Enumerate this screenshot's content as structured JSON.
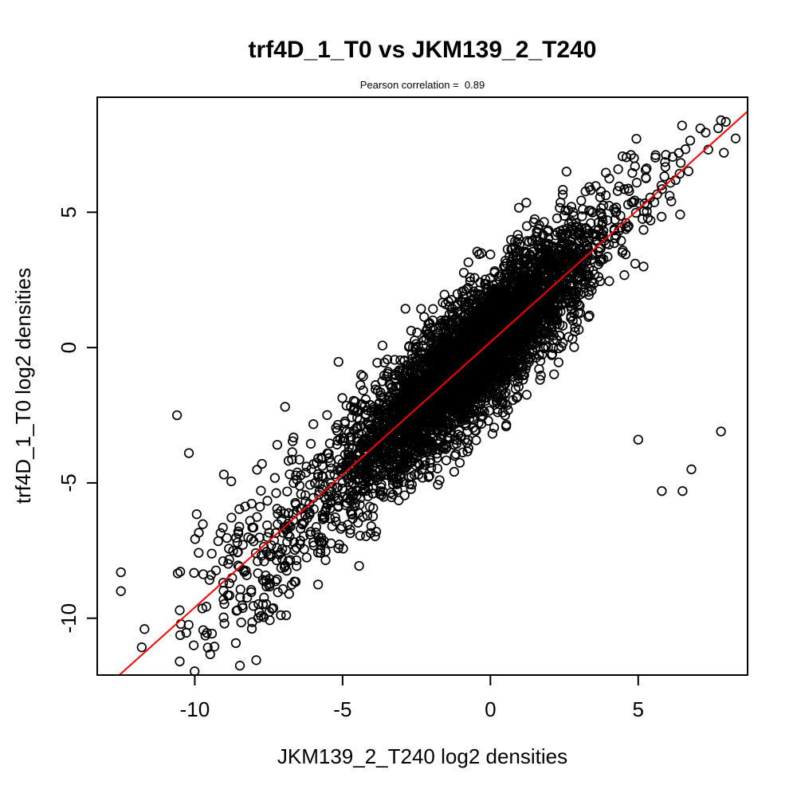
{
  "chart_data": {
    "type": "scatter",
    "title": "trf4D_1_T0 vs JKM139_2_T240",
    "subtitle": "Pearson correlation =  0.89",
    "pearson_correlation": 0.89,
    "xlabel": "JKM139_2_T240 log2 densities",
    "ylabel": "trf4D_1_T0 log2 densities",
    "xlim": [
      -13.3,
      8.7
    ],
    "ylim": [
      -12.1,
      9.25
    ],
    "x_ticks": [
      -10,
      -5,
      0,
      5
    ],
    "y_ticks": [
      -10,
      -5,
      0,
      5
    ],
    "grid": false,
    "legend": "none",
    "colors": {
      "background": "#ffffff",
      "axis": "#000000",
      "points": "#000000",
      "fit_line": "#ff0000"
    },
    "marker": {
      "shape": "open-circle",
      "radius_px": 5.3,
      "stroke": "#000000",
      "stroke_width": 1.7
    },
    "fit_line": {
      "slope": 0.98,
      "intercept": 0.2,
      "color": "#ff0000",
      "width": 2
    },
    "points": {
      "description": "Dense correlated cloud of ~5000 open circles along the diagonal; values reconstructed statistically from the plot (seeded clusters), plus individually visible outliers.",
      "seed": 7,
      "approx_n_total": 4970,
      "clusters": [
        {
          "name": "core",
          "n": 4600,
          "x_mean": -0.6,
          "x_sd": 2.05,
          "slope": 0.98,
          "intercept": 0.2,
          "residual_sd": 1.15
        },
        {
          "name": "low-signal-tail",
          "n": 330,
          "x_mean": -7.0,
          "x_sd": 2.2,
          "slope": 0.98,
          "intercept": 0.2,
          "residual_sd": 1.7
        },
        {
          "name": "upper-right-trail",
          "n": 28,
          "x_mean": 6.0,
          "x_sd": 1.0,
          "slope": 0.98,
          "intercept": 0.2,
          "residual_sd": 0.9
        }
      ],
      "outliers": [
        [
          7.8,
          -3.1
        ],
        [
          5.0,
          -3.4
        ],
        [
          6.8,
          -4.5
        ],
        [
          5.8,
          -5.3
        ],
        [
          6.5,
          -5.3
        ],
        [
          -10.6,
          -2.5
        ],
        [
          -10.2,
          -3.9
        ],
        [
          7.8,
          8.4
        ],
        [
          7.1,
          8.1
        ],
        [
          7.9,
          7.2
        ],
        [
          -12.5,
          -8.3
        ],
        [
          -12.5,
          -9.0
        ],
        [
          -11.7,
          -10.4
        ]
      ]
    }
  }
}
